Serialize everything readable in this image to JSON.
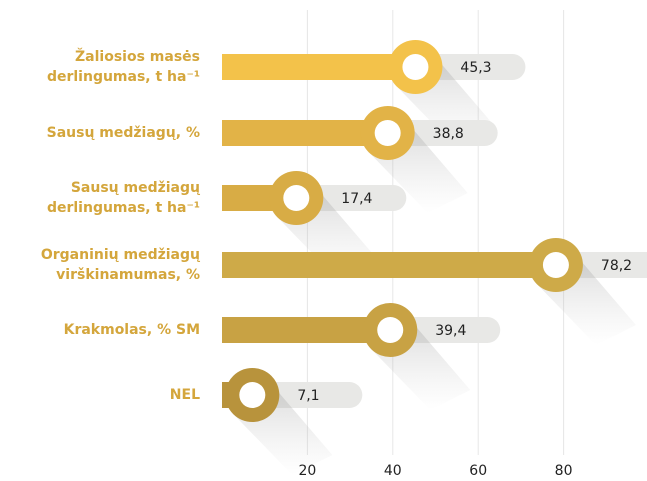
{
  "chart_data": {
    "type": "bar",
    "categories": [
      [
        "Žaliosios masės",
        "derlingumas, t ha⁻¹"
      ],
      [
        "Sausų medžiagų, %"
      ],
      [
        "Sausų medžiagų",
        "derlingumas, t ha⁻¹"
      ],
      [
        "Organinių medžiagų",
        "virškinamumas, %"
      ],
      [
        "Krakmolas, % SM"
      ],
      [
        "NEL"
      ]
    ],
    "values": [
      45.3,
      38.8,
      17.4,
      78.2,
      39.4,
      7.1
    ],
    "value_labels": [
      "45,3",
      "38,8",
      "17,4",
      "78,2",
      "39,4",
      "7,1"
    ],
    "colors": [
      "#f3c24a",
      "#e2b347",
      "#d8ac45",
      "#ceaa48",
      "#c8a244",
      "#b8933c"
    ],
    "xlim": [
      0,
      100
    ],
    "xticks": [
      20,
      40,
      60,
      80
    ],
    "grid": true
  }
}
